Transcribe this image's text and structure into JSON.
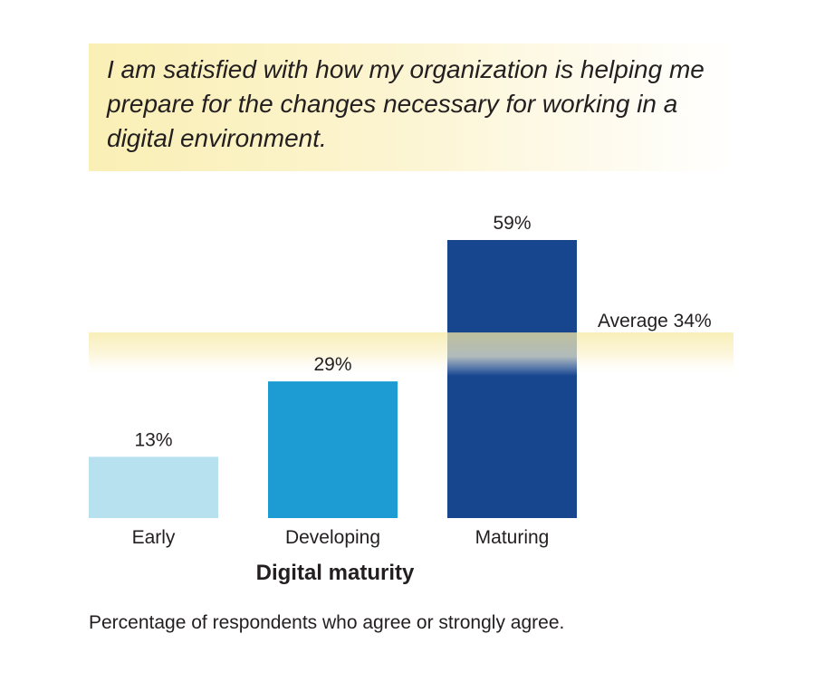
{
  "title": "I am satisfied with how my organization is helping me prepare for the changes necessary for working in a digital environment.",
  "footnote": "Percentage of respondents who agree or strongly agree.",
  "colors": {
    "title_band": "#faefb5",
    "average_band": "#f6e9a0",
    "early": "#b8e1f0",
    "developing": "#1d9bd3",
    "maturing": "#17468f"
  },
  "chart_data": {
    "type": "bar",
    "categories": [
      "Early",
      "Developing",
      "Maturing"
    ],
    "values": [
      13,
      29,
      59
    ],
    "value_labels": [
      "13%",
      "29%",
      "59%"
    ],
    "xlabel": "Digital maturity",
    "ylabel": "",
    "ylim": [
      0,
      59
    ],
    "average": {
      "value": 34,
      "label": "Average 34%"
    },
    "grid": false,
    "legend": "none"
  }
}
